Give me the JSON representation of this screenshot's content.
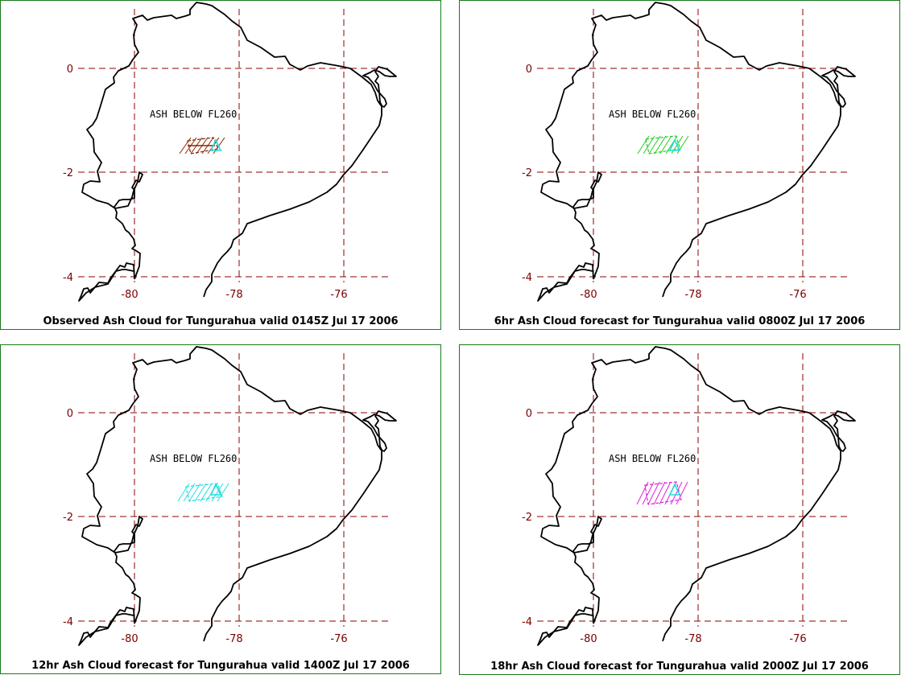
{
  "panels": [
    {
      "caption": "Observed Ash Cloud for Tungurahua valid 0145Z Jul 17 2006",
      "annotation": "ASH BELOW FL260",
      "cloud_color": "#8b2500"
    },
    {
      "caption": "6hr Ash Cloud forecast for Tungurahua valid 0800Z Jul 17 2006",
      "annotation": "ASH BELOW FL260",
      "cloud_color": "#22cc22"
    },
    {
      "caption": "12hr Ash Cloud forecast for Tungurahua valid 1400Z Jul 17 2006",
      "annotation": "ASH BELOW FL260",
      "cloud_color": "#22dddd"
    },
    {
      "caption": "18hr Ash Cloud forecast for Tungurahua valid 2000Z Jul 17 2006",
      "annotation": "ASH BELOW FL260",
      "cloud_color": "#dd22dd"
    }
  ],
  "lat_labels": [
    "0",
    "-2",
    "-4"
  ],
  "lon_labels": [
    "-80",
    "-78",
    "-76"
  ],
  "volcano_marker_color": "#22dddd",
  "grid_color": "#8b0000",
  "border_color": "#1a7a1a"
}
